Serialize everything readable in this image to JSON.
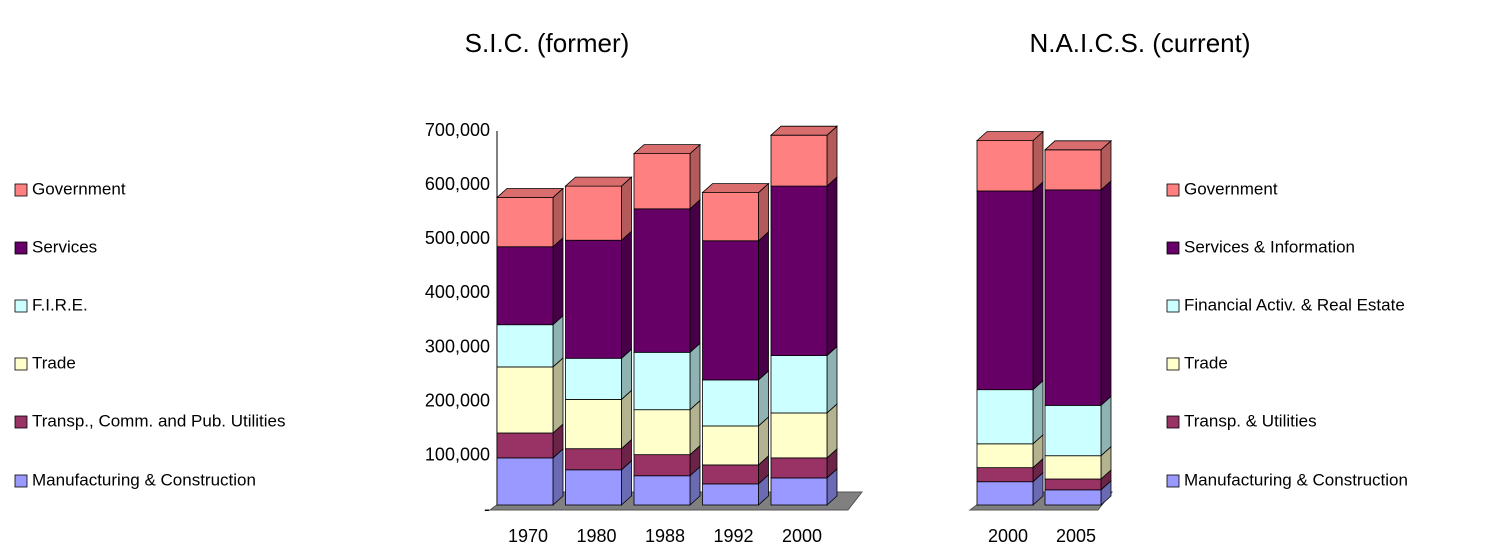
{
  "chart_data": [
    {
      "type": "bar3d",
      "title": "S.I.C. (former)",
      "categories": [
        "1970",
        "1980",
        "1988",
        "1992",
        "2000"
      ],
      "series": [
        {
          "name": "Manufacturing & Construction",
          "color": "#9999ff",
          "values": [
            87000,
            65000,
            54000,
            39000,
            50000
          ]
        },
        {
          "name": "Transp., Comm. and Pub. Utilities",
          "color": "#993366",
          "values": [
            46000,
            39000,
            39000,
            35000,
            37000
          ]
        },
        {
          "name": "Trade",
          "color": "#ffffcc",
          "values": [
            122000,
            91000,
            83000,
            72000,
            83000
          ]
        },
        {
          "name": "F.I.R.E.",
          "color": "#ccffff",
          "values": [
            78000,
            76000,
            106000,
            85000,
            106000
          ]
        },
        {
          "name": "Services",
          "color": "#660066",
          "values": [
            144000,
            218000,
            265000,
            257000,
            313000
          ]
        },
        {
          "name": "Government",
          "color": "#ff8080",
          "values": [
            91000,
            100000,
            102000,
            89000,
            94000
          ]
        }
      ],
      "ylim": [
        0,
        700000
      ],
      "yticks": [
        {
          "value": 0,
          "label": "-"
        },
        {
          "value": 100000,
          "label": "100,000"
        },
        {
          "value": 200000,
          "label": "200,000"
        },
        {
          "value": 300000,
          "label": "300,000"
        },
        {
          "value": 400000,
          "label": "400,000"
        },
        {
          "value": 500000,
          "label": "500,000"
        },
        {
          "value": 600000,
          "label": "600,000"
        },
        {
          "value": 700000,
          "label": "700,000"
        }
      ],
      "legend": "left"
    },
    {
      "type": "bar3d",
      "title": "N.A.I.C.S. (current)",
      "categories": [
        "2000",
        "2005"
      ],
      "series": [
        {
          "name": "Manufacturing & Construction",
          "color": "#9999ff",
          "values": [
            43000,
            28000
          ]
        },
        {
          "name": "Transp. & Utilities",
          "color": "#993366",
          "values": [
            26000,
            20000
          ]
        },
        {
          "name": "Trade",
          "color": "#ffffcc",
          "values": [
            44000,
            43000
          ]
        },
        {
          "name": "Financial Activ. & Real Estate",
          "color": "#ccffff",
          "values": [
            100000,
            93000
          ]
        },
        {
          "name": "Services & Information",
          "color": "#660066",
          "values": [
            367000,
            398000
          ]
        },
        {
          "name": "Government",
          "color": "#ff8080",
          "values": [
            93000,
            74000
          ]
        }
      ],
      "ylim": [
        0,
        700000
      ],
      "legend": "right"
    }
  ]
}
